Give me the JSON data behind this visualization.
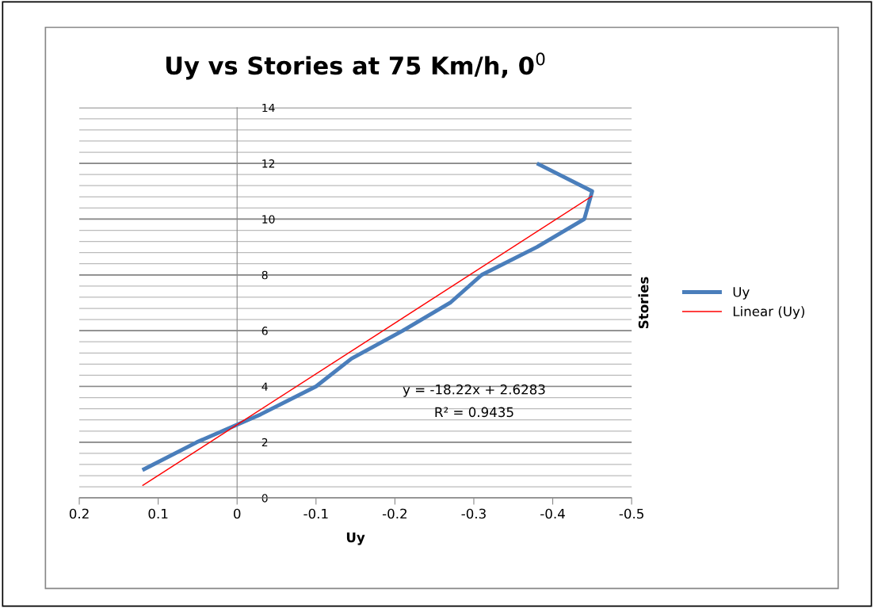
{
  "chart_data": {
    "type": "line",
    "title": "Uy vs Stories at 75 Km/h, 0$^{0}$",
    "xlabel": "Uy",
    "ylabel": "Stories",
    "series": [
      {
        "name": "Uy",
        "color": "#4a7ebb",
        "x": [
          0.12,
          0.051,
          -0.03,
          -0.1,
          -0.145,
          -0.21,
          -0.27,
          -0.31,
          -0.38,
          -0.44,
          -0.45,
          -0.38
        ],
        "values": [
          1,
          2,
          3,
          4,
          5,
          6,
          7,
          8,
          9,
          10,
          11,
          12
        ]
      },
      {
        "name": "Linear (Uy)",
        "color": "#ff0000",
        "x": [
          0.12,
          -0.45
        ],
        "values": [
          0.44,
          10.83
        ]
      }
    ],
    "xlim": [
      0.2,
      -0.5
    ],
    "xticks": [
      0.2,
      0.1,
      0,
      -0.1,
      -0.2,
      -0.3,
      -0.4,
      -0.5
    ],
    "ylim": [
      0,
      14
    ],
    "yticks": [
      0,
      2,
      4,
      6,
      8,
      10,
      12,
      14
    ],
    "grid": "y",
    "legend": "right",
    "marker": "none",
    "annotations": [
      "y = -18.22x + 2.6283",
      "R² = 0.9435"
    ]
  }
}
